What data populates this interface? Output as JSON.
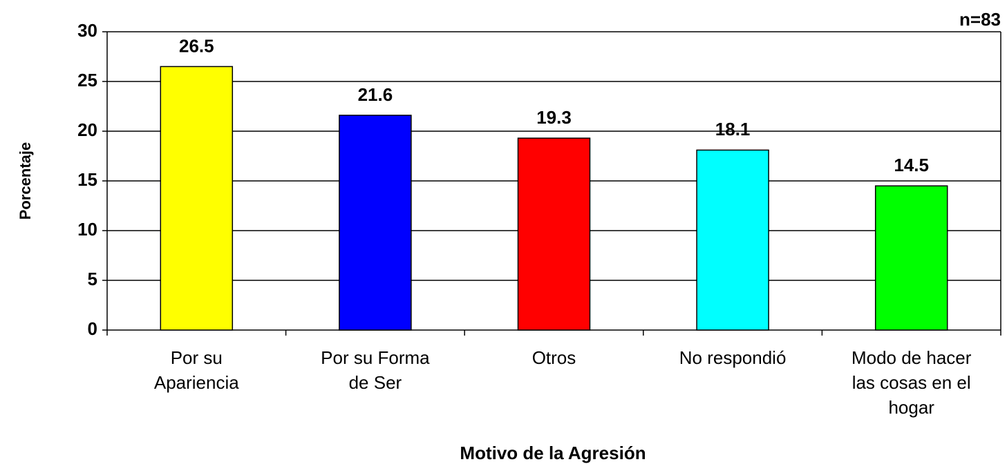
{
  "chart_data": {
    "type": "bar",
    "annotation": "n=83",
    "ylabel": "Porcentaje",
    "xlabel": "Motivo de la Agresión",
    "categories": [
      "Por su Apariencia",
      "Por su Forma de Ser",
      "Otros",
      "No respondió",
      "Modo de hacer las cosas en el hogar"
    ],
    "values": [
      26.5,
      21.6,
      19.3,
      18.1,
      14.5
    ],
    "colors": [
      "#ffff00",
      "#0000ff",
      "#ff0000",
      "#00ffff",
      "#00ff00"
    ],
    "ylim": [
      0,
      30
    ],
    "yticks": [
      0,
      5,
      10,
      15,
      20,
      25,
      30
    ],
    "grid": true
  }
}
